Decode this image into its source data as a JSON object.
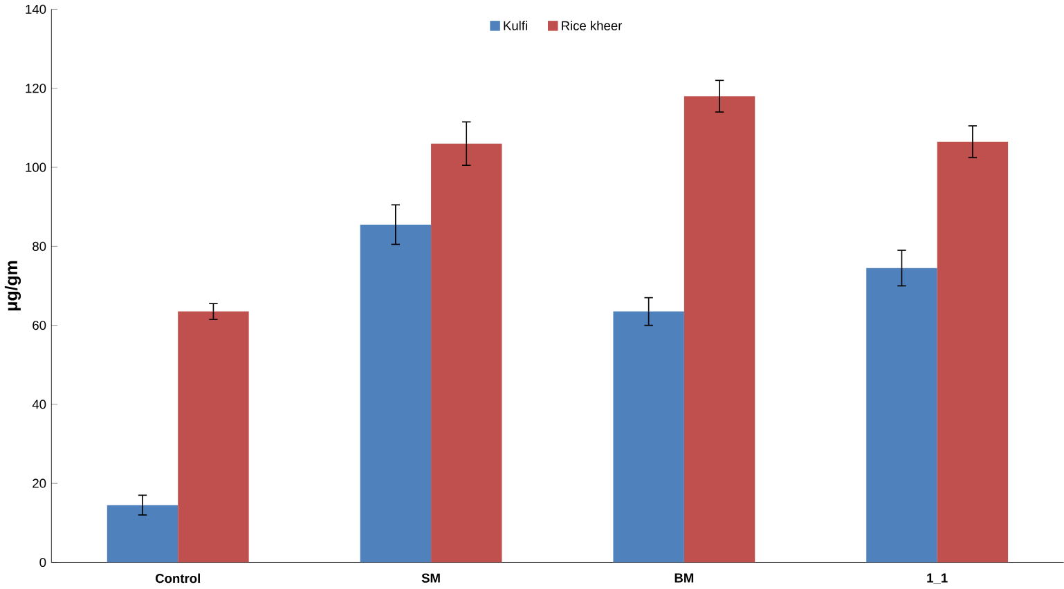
{
  "chart_data": {
    "type": "bar",
    "ylabel": "μg/gm",
    "categories": [
      "Control",
      "SM",
      "BM",
      "1_1"
    ],
    "series": [
      {
        "name": "Kulfi",
        "color": "#4f81bd",
        "values": [
          14.5,
          85.5,
          63.5,
          74.5
        ],
        "errors": [
          2.5,
          5,
          3.5,
          4.5
        ]
      },
      {
        "name": "Rice kheer",
        "color": "#c0504d",
        "values": [
          63.5,
          106,
          118,
          106.5
        ],
        "errors": [
          2,
          5.5,
          4,
          4
        ]
      }
    ],
    "ylim": [
      0,
      140
    ],
    "yticks": [
      0,
      20,
      40,
      60,
      80,
      100,
      120,
      140
    ],
    "legend": "top",
    "grid": false
  }
}
